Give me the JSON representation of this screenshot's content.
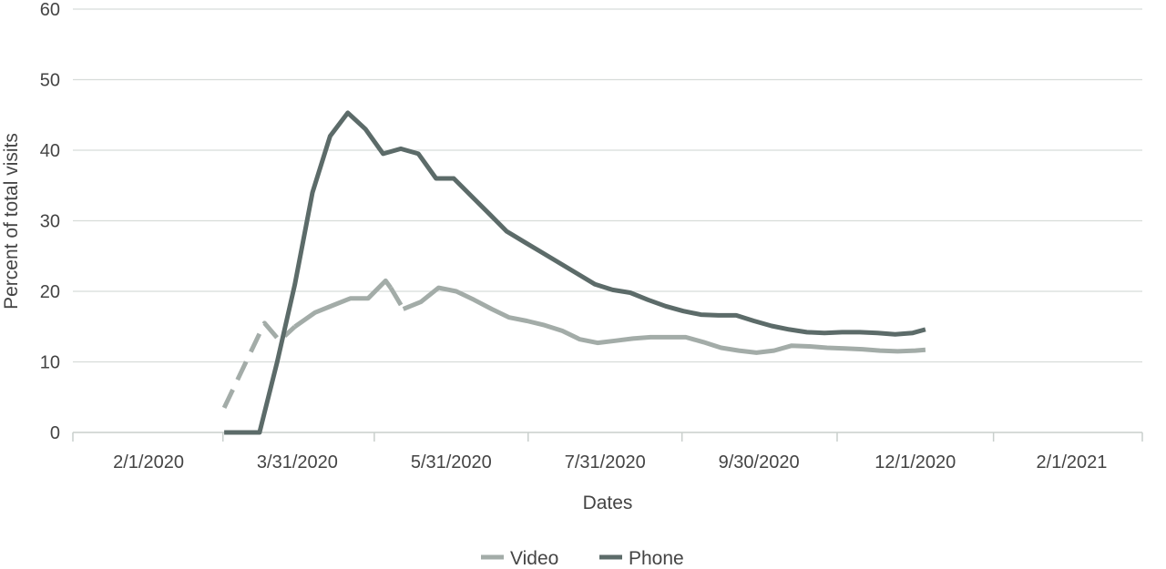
{
  "chart_data": {
    "type": "line",
    "title": "",
    "xlabel": "Dates",
    "ylabel": "Percent of total visits",
    "ylim": [
      0,
      60
    ],
    "yticks": [
      0,
      10,
      20,
      30,
      40,
      50,
      60
    ],
    "xlim": [
      "2020-01-02",
      "2021-03-01"
    ],
    "xticks": [
      {
        "date": "2020-02-01",
        "label": "2/1/2020"
      },
      {
        "date": "2020-03-31",
        "label": "3/31/2020"
      },
      {
        "date": "2020-05-31",
        "label": "5/31/2020"
      },
      {
        "date": "2020-07-31",
        "label": "7/31/2020"
      },
      {
        "date": "2020-09-30",
        "label": "9/30/2020"
      },
      {
        "date": "2020-12-01",
        "label": "12/1/2020"
      },
      {
        "date": "2021-02-01",
        "label": "2/1/2021"
      }
    ],
    "grid": true,
    "legend_position": "bottom",
    "series": [
      {
        "name": "Video",
        "color": "#a3aca8",
        "segments": [
          {
            "style": "dashed",
            "points": [
              [
                "2020-03-02",
                3.5
              ],
              [
                "2020-03-18",
                15.5
              ],
              [
                "2020-03-24",
                13.0
              ],
              [
                "2020-03-30",
                15.0
              ]
            ]
          },
          {
            "style": "solid",
            "points": [
              [
                "2020-03-30",
                15.0
              ],
              [
                "2020-04-07",
                17.0
              ],
              [
                "2020-04-14",
                18.0
              ],
              [
                "2020-04-21",
                19.0
              ],
              [
                "2020-04-28",
                19.0
              ],
              [
                "2020-05-05",
                21.5
              ],
              [
                "2020-05-07",
                20.5
              ]
            ]
          },
          {
            "style": "dashed",
            "points": [
              [
                "2020-05-07",
                20.5
              ],
              [
                "2020-05-12",
                17.5
              ]
            ]
          },
          {
            "style": "solid",
            "points": [
              [
                "2020-05-12",
                17.5
              ],
              [
                "2020-05-19",
                18.5
              ],
              [
                "2020-05-26",
                20.5
              ],
              [
                "2020-06-02",
                20.0
              ],
              [
                "2020-06-09",
                18.8
              ],
              [
                "2020-06-16",
                17.5
              ],
              [
                "2020-06-23",
                16.3
              ],
              [
                "2020-06-30",
                15.8
              ],
              [
                "2020-07-07",
                15.2
              ],
              [
                "2020-07-14",
                14.4
              ],
              [
                "2020-07-21",
                13.2
              ],
              [
                "2020-07-28",
                12.7
              ],
              [
                "2020-08-04",
                13.0
              ],
              [
                "2020-08-11",
                13.3
              ],
              [
                "2020-08-18",
                13.5
              ],
              [
                "2020-08-25",
                13.5
              ],
              [
                "2020-09-01",
                13.5
              ],
              [
                "2020-09-08",
                12.8
              ],
              [
                "2020-09-15",
                12.0
              ],
              [
                "2020-09-22",
                11.6
              ],
              [
                "2020-09-29",
                11.3
              ],
              [
                "2020-10-06",
                11.6
              ],
              [
                "2020-10-13",
                12.3
              ],
              [
                "2020-10-20",
                12.2
              ],
              [
                "2020-10-27",
                12.0
              ],
              [
                "2020-11-03",
                11.9
              ],
              [
                "2020-11-10",
                11.8
              ],
              [
                "2020-11-17",
                11.6
              ],
              [
                "2020-11-24",
                11.5
              ],
              [
                "2020-12-01",
                11.6
              ],
              [
                "2020-12-05",
                11.7
              ]
            ]
          }
        ]
      },
      {
        "name": "Phone",
        "color": "#5c6b69",
        "segments": [
          {
            "style": "solid",
            "points": [
              [
                "2020-03-02",
                0
              ],
              [
                "2020-03-16",
                0
              ],
              [
                "2020-03-23",
                10.0
              ],
              [
                "2020-03-30",
                21.0
              ],
              [
                "2020-04-06",
                34.0
              ],
              [
                "2020-04-13",
                42.0
              ],
              [
                "2020-04-20",
                45.3
              ],
              [
                "2020-04-27",
                43.0
              ],
              [
                "2020-05-04",
                39.5
              ],
              [
                "2020-05-11",
                40.2
              ],
              [
                "2020-05-18",
                39.5
              ],
              [
                "2020-05-25",
                36.0
              ],
              [
                "2020-06-01",
                36.0
              ],
              [
                "2020-06-08",
                33.5
              ],
              [
                "2020-06-15",
                31.0
              ],
              [
                "2020-06-22",
                28.5
              ],
              [
                "2020-06-29",
                27.0
              ],
              [
                "2020-07-06",
                25.5
              ],
              [
                "2020-07-13",
                24.0
              ],
              [
                "2020-07-20",
                22.5
              ],
              [
                "2020-07-27",
                21.0
              ],
              [
                "2020-08-03",
                20.2
              ],
              [
                "2020-08-10",
                19.8
              ],
              [
                "2020-08-17",
                18.8
              ],
              [
                "2020-08-24",
                17.9
              ],
              [
                "2020-08-31",
                17.2
              ],
              [
                "2020-09-07",
                16.7
              ],
              [
                "2020-09-14",
                16.6
              ],
              [
                "2020-09-21",
                16.6
              ],
              [
                "2020-09-28",
                15.8
              ],
              [
                "2020-10-05",
                15.1
              ],
              [
                "2020-10-12",
                14.6
              ],
              [
                "2020-10-19",
                14.2
              ],
              [
                "2020-10-26",
                14.1
              ],
              [
                "2020-11-02",
                14.2
              ],
              [
                "2020-11-09",
                14.2
              ],
              [
                "2020-11-16",
                14.1
              ],
              [
                "2020-11-23",
                13.9
              ],
              [
                "2020-11-30",
                14.1
              ],
              [
                "2020-12-05",
                14.6
              ]
            ]
          }
        ]
      }
    ]
  }
}
